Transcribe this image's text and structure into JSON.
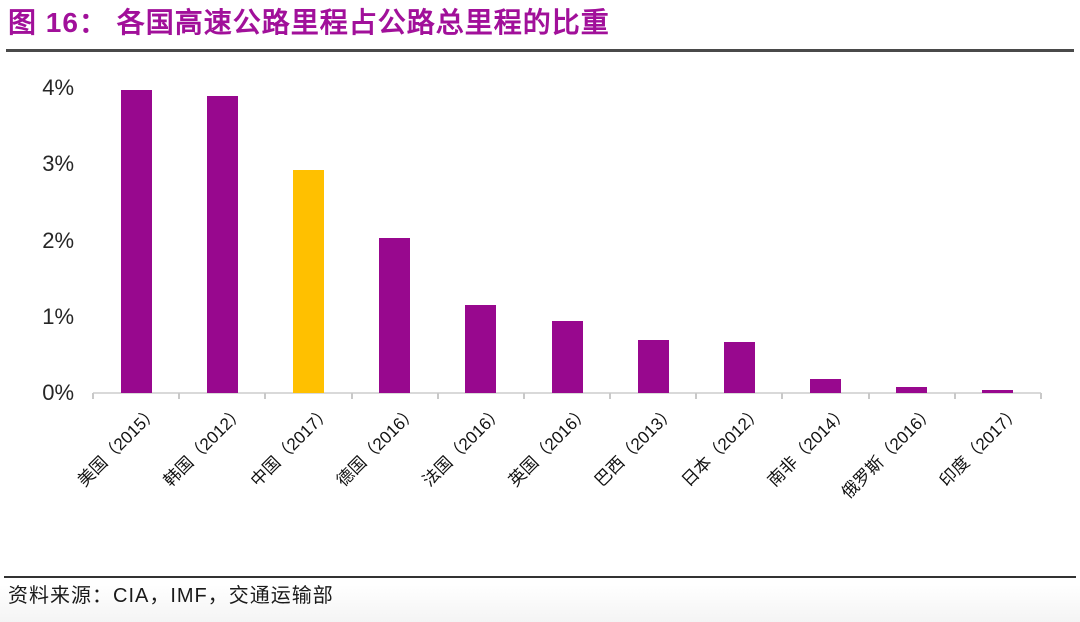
{
  "page": {
    "title": "图 16： 各国高速公路里程占公路总里程的比重",
    "source": "资料来源：CIA，IMF，交通运输部"
  },
  "colors": {
    "title": "#A1109A",
    "title_rule": "#4A4A4A",
    "footer_rule": "#333333",
    "bar": "#98088E",
    "bar_highlight": "#FFC000",
    "axis_line": "#D9D9D9",
    "tick": "#C9C9C9",
    "axis_text": "#262626"
  },
  "chart_data": {
    "type": "bar",
    "title": "各国高速公路里程占公路总里程的比重",
    "categories": [
      "美国（2015）",
      "韩国（2012）",
      "中国（2017）",
      "德国（2016）",
      "法国（2016）",
      "英国（2016）",
      "巴西（2013）",
      "日本（2012）",
      "南非（2014）",
      "俄罗斯（2016）",
      "印度（2017）"
    ],
    "values": [
      3.97,
      3.9,
      2.92,
      2.03,
      1.15,
      0.95,
      0.7,
      0.67,
      0.18,
      0.08,
      0.04
    ],
    "unit": "%",
    "highlight_index": 2,
    "highlight_category": "中国（2017）",
    "xlabel": "",
    "ylabel": "",
    "ylim": [
      0,
      4
    ],
    "yticks": [
      0,
      1,
      2,
      3,
      4
    ],
    "ytick_labels": [
      "0%",
      "1%",
      "2%",
      "3%",
      "4%"
    ],
    "grid": false,
    "legend": "none",
    "xtick_rotation_deg": 45
  }
}
